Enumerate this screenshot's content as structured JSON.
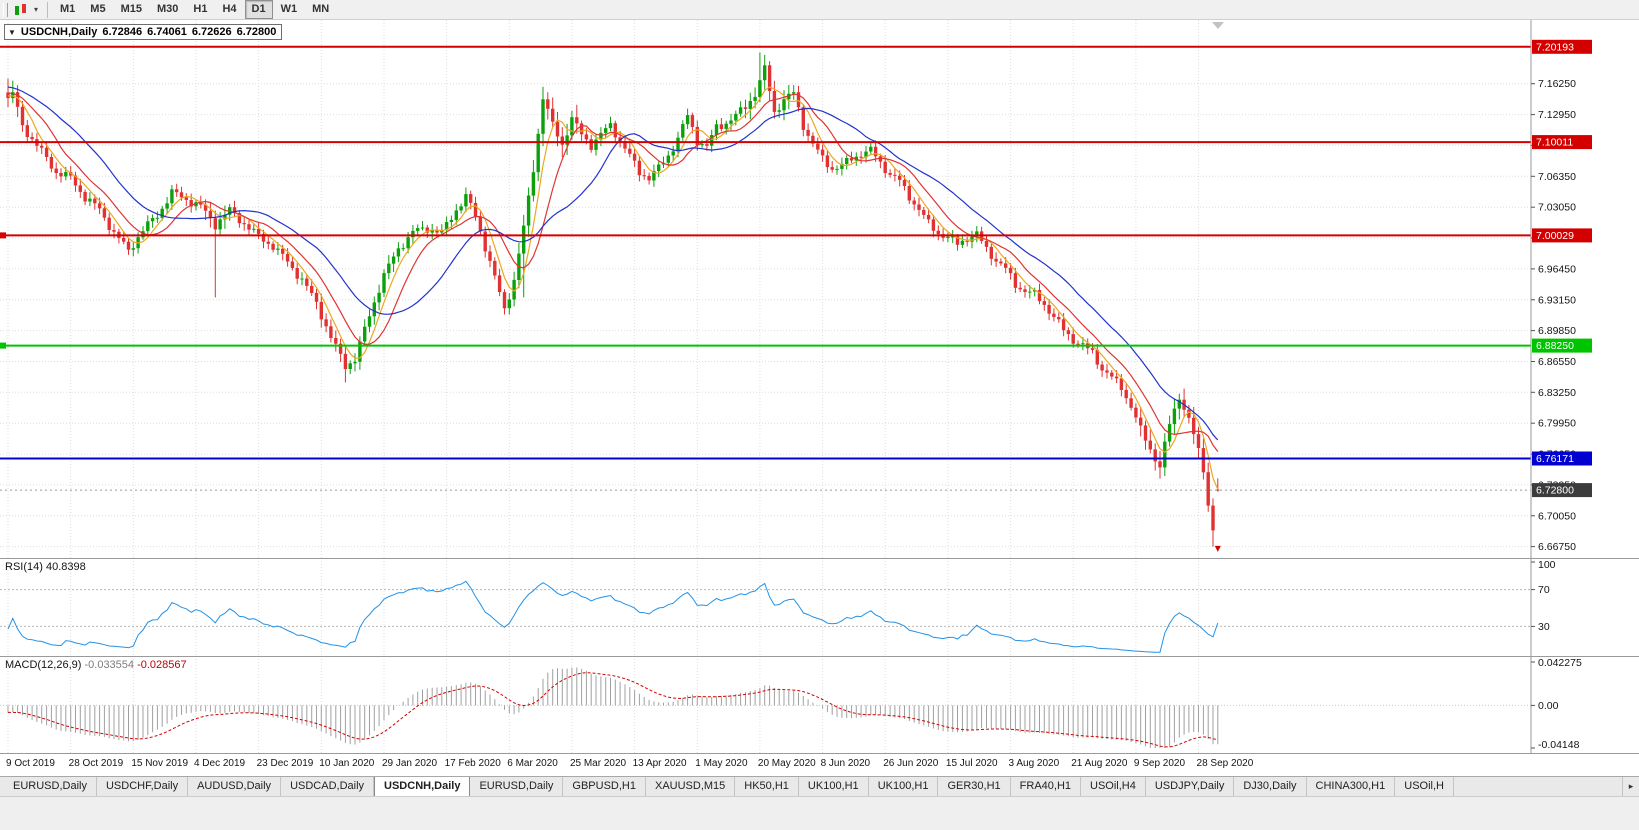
{
  "toolbar": {
    "timeframes": [
      {
        "label": "M1",
        "active": false
      },
      {
        "label": "M5",
        "active": false
      },
      {
        "label": "M15",
        "active": false
      },
      {
        "label": "M30",
        "active": false
      },
      {
        "label": "H1",
        "active": false
      },
      {
        "label": "H4",
        "active": false
      },
      {
        "label": "D1",
        "active": true
      },
      {
        "label": "W1",
        "active": false
      },
      {
        "label": "MN",
        "active": false
      }
    ]
  },
  "icons": {
    "collapse": "▼",
    "dropdown_caret": "▾",
    "tab_scroll_right": "▸"
  },
  "chart": {
    "symbol_period": "USDCNH,Daily",
    "open": "6.72846",
    "high": "6.74061",
    "low": "6.72626",
    "close": "6.72800"
  },
  "rsi": {
    "name": "RSI(14)",
    "value": "40.8398",
    "axis_labels": [
      "100",
      "70",
      "30"
    ],
    "levels": [
      70,
      30
    ]
  },
  "macd": {
    "name": "MACD(12,26,9)",
    "main_value": "-0.033554",
    "signal_value": "-0.028567",
    "axis_top_label": "0.042275",
    "axis_zero_label": "0.00",
    "axis_bottom_label": "-0.04148"
  },
  "tabs": {
    "active_index": 4,
    "items": [
      "EURUSD,Daily",
      "USDCHF,Daily",
      "AUDUSD,Daily",
      "USDCAD,Daily",
      "USDCNH,Daily",
      "EURUSD,Daily",
      "GBPUSD,H1",
      "XAUUSD,M15",
      "HK50,H1",
      "UK100,H1",
      "UK100,H1",
      "GER30,H1",
      "FRA40,H1",
      "USOil,H4",
      "USDJPY,Daily",
      "DJ30,Daily",
      "CHINA300,H1",
      "USOil,H"
    ]
  },
  "colors": {
    "up": "#0da00d",
    "down": "#e03232",
    "grid": "#dedede",
    "rsi_line": "#2292e8",
    "rsi_level": "#b8b8b8",
    "macd_hist": "#a0a0a0",
    "macd_signal": "#d40000",
    "axis_text": "#141414",
    "badge_current": "#3c3c3c"
  },
  "chart_data": {
    "type": "candlestick",
    "symbol": "USDCNH",
    "period": "Daily",
    "current_ohlc": {
      "open": 6.72846,
      "high": 6.74061,
      "low": 6.72626,
      "close": 6.728
    },
    "x_labels": [
      "9 Oct 2019",
      "28 Oct 2019",
      "15 Nov 2019",
      "4 Dec 2019",
      "23 Dec 2019",
      "10 Jan 2020",
      "29 Jan 2020",
      "17 Feb 2020",
      "6 Mar 2020",
      "25 Mar 2020",
      "13 Apr 2020",
      "1 May 2020",
      "20 May 2020",
      "8 Jun 2020",
      "26 Jun 2020",
      "15 Jul 2020",
      "3 Aug 2020",
      "21 Aug 2020",
      "9 Sep 2020",
      "28 Sep 2020"
    ],
    "price_ticks": [
      7.1625,
      7.1295,
      7.0965,
      7.0635,
      7.0305,
      6.9975,
      6.9645,
      6.9315,
      6.8985,
      6.8655,
      6.8325,
      6.7995,
      6.7665,
      6.7335,
      6.7005,
      6.6675
    ],
    "price_range": [
      6.6575,
      7.2285
    ],
    "num_candles": 252,
    "close_keypoints": [
      [
        0,
        7.145
      ],
      [
        1,
        7.152
      ],
      [
        3,
        7.118
      ],
      [
        5,
        7.103
      ],
      [
        7,
        7.09
      ],
      [
        10,
        7.068
      ],
      [
        13,
        7.062
      ],
      [
        16,
        7.041
      ],
      [
        19,
        7.028
      ],
      [
        22,
        7.003
      ],
      [
        25,
        6.984
      ],
      [
        28,
        7.006
      ],
      [
        31,
        7.022
      ],
      [
        34,
        7.046
      ],
      [
        37,
        7.039
      ],
      [
        40,
        7.031
      ],
      [
        43,
        7.012
      ],
      [
        46,
        7.027
      ],
      [
        49,
        7.013
      ],
      [
        52,
        6.999
      ],
      [
        55,
        6.989
      ],
      [
        58,
        6.972
      ],
      [
        61,
        6.953
      ],
      [
        64,
        6.928
      ],
      [
        67,
        6.891
      ],
      [
        70,
        6.861
      ],
      [
        72,
        6.868
      ],
      [
        75,
        6.915
      ],
      [
        78,
        6.958
      ],
      [
        81,
        6.986
      ],
      [
        84,
        7.004
      ],
      [
        87,
        7.008
      ],
      [
        90,
        7.003
      ],
      [
        93,
        7.028
      ],
      [
        95,
        7.042
      ],
      [
        97,
        7.021
      ],
      [
        100,
        6.972
      ],
      [
        103,
        6.921
      ],
      [
        105,
        6.953
      ],
      [
        107,
        7.008
      ],
      [
        109,
        7.072
      ],
      [
        111,
        7.148
      ],
      [
        113,
        7.118
      ],
      [
        115,
        7.098
      ],
      [
        117,
        7.125
      ],
      [
        119,
        7.108
      ],
      [
        121,
        7.097
      ],
      [
        123,
        7.108
      ],
      [
        125,
        7.118
      ],
      [
        127,
        7.102
      ],
      [
        129,
        7.085
      ],
      [
        131,
        7.068
      ],
      [
        133,
        7.062
      ],
      [
        135,
        7.072
      ],
      [
        137,
        7.086
      ],
      [
        139,
        7.104
      ],
      [
        141,
        7.128
      ],
      [
        143,
        7.102
      ],
      [
        145,
        7.095
      ],
      [
        147,
        7.116
      ],
      [
        149,
        7.121
      ],
      [
        151,
        7.128
      ],
      [
        153,
        7.138
      ],
      [
        155,
        7.152
      ],
      [
        157,
        7.178
      ],
      [
        159,
        7.132
      ],
      [
        161,
        7.146
      ],
      [
        163,
        7.152
      ],
      [
        165,
        7.118
      ],
      [
        167,
        7.098
      ],
      [
        169,
        7.082
      ],
      [
        171,
        7.072
      ],
      [
        173,
        7.075
      ],
      [
        175,
        7.082
      ],
      [
        177,
        7.088
      ],
      [
        179,
        7.091
      ],
      [
        181,
        7.078
      ],
      [
        183,
        7.066
      ],
      [
        185,
        7.058
      ],
      [
        187,
        7.042
      ],
      [
        189,
        7.028
      ],
      [
        191,
        7.013
      ],
      [
        193,
        7.003
      ],
      [
        195,
        6.998
      ],
      [
        197,
        6.991
      ],
      [
        199,
        6.998
      ],
      [
        201,
        7.001
      ],
      [
        203,
        6.986
      ],
      [
        205,
        6.974
      ],
      [
        207,
        6.964
      ],
      [
        209,
        6.948
      ],
      [
        211,
        6.941
      ],
      [
        213,
        6.937
      ],
      [
        215,
        6.927
      ],
      [
        217,
        6.913
      ],
      [
        219,
        6.899
      ],
      [
        221,
        6.889
      ],
      [
        223,
        6.882
      ],
      [
        225,
        6.875
      ],
      [
        227,
        6.858
      ],
      [
        229,
        6.848
      ],
      [
        231,
        6.838
      ],
      [
        233,
        6.818
      ],
      [
        235,
        6.792
      ],
      [
        237,
        6.772
      ],
      [
        239,
        6.753
      ],
      [
        241,
        6.798
      ],
      [
        243,
        6.829
      ],
      [
        245,
        6.803
      ],
      [
        247,
        6.772
      ],
      [
        248,
        6.748
      ],
      [
        249,
        6.712
      ],
      [
        250,
        6.685
      ],
      [
        251,
        6.728
      ]
    ],
    "spikes": [
      {
        "i": 0,
        "high": 7.168
      },
      {
        "i": 43,
        "low": 6.934
      },
      {
        "i": 70,
        "low": 6.843
      },
      {
        "i": 107,
        "low": 6.934
      },
      {
        "i": 156,
        "high": 7.196
      },
      {
        "i": 157,
        "high": 7.188
      },
      {
        "i": 239,
        "low": 6.742
      },
      {
        "i": 250,
        "low": 6.6675
      }
    ],
    "volatility_zones": [
      [
        0,
        2,
        1.8
      ],
      [
        41,
        45,
        1.5
      ],
      [
        64,
        80,
        1.3
      ],
      [
        105,
        118,
        1.9
      ],
      [
        153,
        163,
        1.6
      ],
      [
        235,
        251,
        1.7
      ]
    ],
    "horizontal_levels": [
      {
        "price": 7.20193,
        "label": "7.20193",
        "color": "#d40000",
        "handle": false
      },
      {
        "price": 7.10011,
        "label": "7.10011",
        "color": "#d40000",
        "handle": false
      },
      {
        "price": 7.00029,
        "label": "7.00029",
        "color": "#d40000",
        "handle": true
      },
      {
        "price": 6.8825,
        "label": "6.88250",
        "color": "#00c400",
        "handle": true
      },
      {
        "price": 6.76171,
        "label": "6.76171",
        "color": "#0000d0",
        "handle": false
      }
    ],
    "current_price": {
      "price": 6.728,
      "label": "6.72800"
    },
    "moving_averages": [
      {
        "period": 5,
        "color": "#eaa821"
      },
      {
        "period": 10,
        "color": "#e03333"
      },
      {
        "period": 21,
        "color": "#2233cc"
      }
    ],
    "rsi": {
      "period": 14,
      "current": 40.8398
    },
    "macd": {
      "fast_period": 12,
      "slow_period": 26,
      "signal_period": 9,
      "main_value": -0.033554,
      "signal_value": -0.028567,
      "range": [
        -0.04148,
        0.042275
      ]
    },
    "marker": {
      "index": 251,
      "price": 6.664,
      "type": "arrow-down",
      "color": "#d40000"
    }
  }
}
